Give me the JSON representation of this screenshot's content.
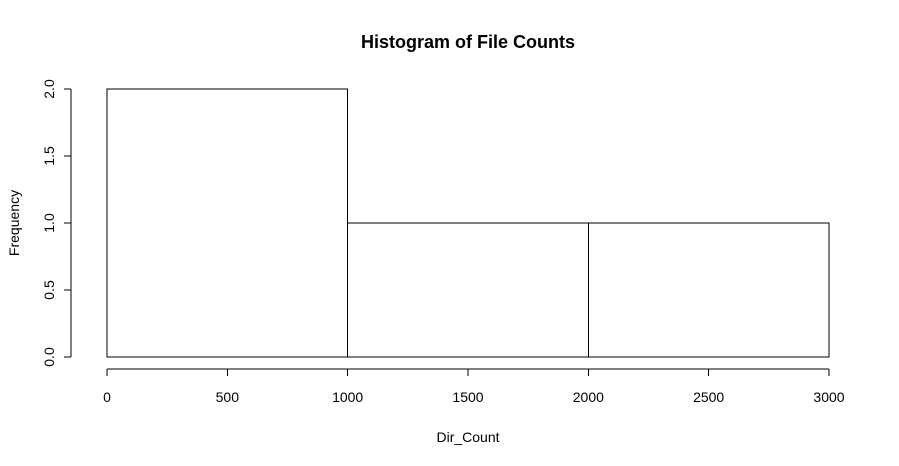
{
  "chart_data": {
    "type": "bar",
    "subtype": "histogram",
    "title": "Histogram of File Counts",
    "xlabel": "Dir_Count",
    "ylabel": "Frequency",
    "bins": [
      {
        "start": 0,
        "end": 1000,
        "count": 2
      },
      {
        "start": 1000,
        "end": 2000,
        "count": 1
      },
      {
        "start": 2000,
        "end": 3000,
        "count": 1
      }
    ],
    "xlim": [
      0,
      3000
    ],
    "ylim": [
      0,
      2
    ],
    "xticks": [
      "0",
      "500",
      "1000",
      "1500",
      "2000",
      "2500",
      "3000"
    ],
    "yticks": [
      "0.0",
      "0.5",
      "1.0",
      "1.5",
      "2.0"
    ],
    "grid": false,
    "bar_fill": "#ffffff",
    "bar_stroke": "#000000"
  }
}
